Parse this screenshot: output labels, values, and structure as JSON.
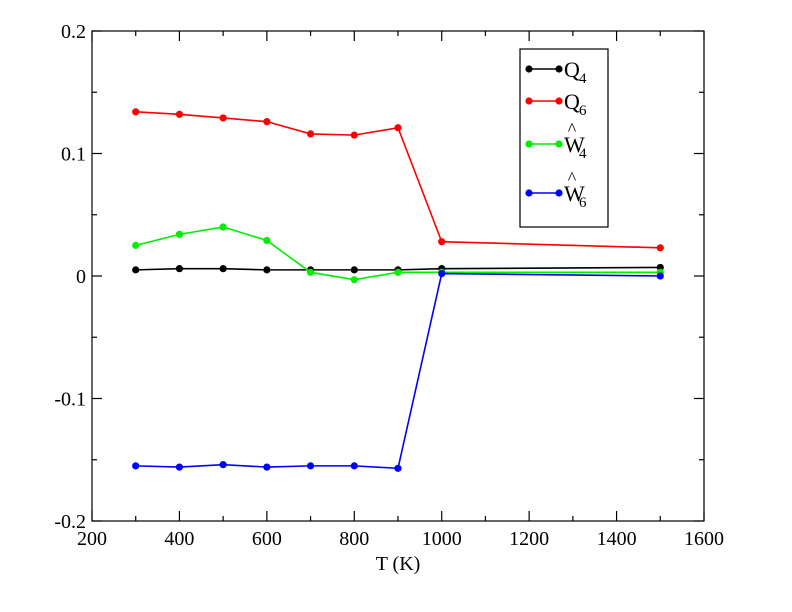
{
  "chart_data": {
    "type": "line",
    "title": "",
    "xlabel": "T (K)",
    "ylabel": "",
    "xlim": [
      200,
      1600
    ],
    "ylim": [
      -0.2,
      0.2
    ],
    "xticks": [
      200,
      400,
      600,
      800,
      1000,
      1200,
      1400,
      1600
    ],
    "xtick_labels": [
      "200",
      "400",
      "600",
      "800",
      "1000",
      "1200",
      "1400",
      "1600"
    ],
    "yticks": [
      -0.2,
      -0.1,
      0,
      0.1,
      0.2
    ],
    "ytick_labels": [
      "-0.2",
      "-0.1",
      "0",
      "0.1",
      "0.2"
    ],
    "grid": false,
    "legend_position": "top-right",
    "x": [
      300,
      400,
      500,
      600,
      700,
      800,
      900,
      1000,
      1500
    ],
    "series": [
      {
        "name": "Q4",
        "label_main": "Q",
        "label_sub": "4",
        "label_hat": "",
        "color": "#000000",
        "values": [
          0.005,
          0.006,
          0.006,
          0.005,
          0.005,
          0.005,
          0.005,
          0.006,
          0.007
        ]
      },
      {
        "name": "Q6",
        "label_main": "Q",
        "label_sub": "6",
        "label_hat": "",
        "color": "#ff0000",
        "values": [
          0.134,
          0.132,
          0.129,
          0.126,
          0.116,
          0.115,
          0.121,
          0.028,
          0.023
        ]
      },
      {
        "name": "Ŵ4",
        "label_main": "W",
        "label_sub": "4",
        "label_hat": "^",
        "color": "#00ee00",
        "values": [
          0.025,
          0.034,
          0.04,
          0.029,
          0.003,
          -0.003,
          0.003,
          0.003,
          0.003
        ]
      },
      {
        "name": "Ŵ6",
        "label_main": "W",
        "label_sub": "6",
        "label_hat": "^",
        "color": "#0000ff",
        "values": [
          -0.155,
          -0.156,
          -0.154,
          -0.156,
          -0.155,
          -0.155,
          -0.157,
          0.002,
          0.0
        ]
      }
    ]
  }
}
